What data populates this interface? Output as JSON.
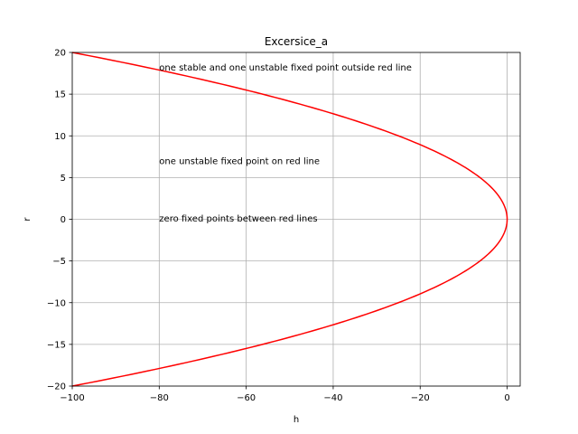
{
  "chart_data": {
    "type": "line",
    "title": "Excersice_a",
    "xlabel": "h",
    "ylabel": "r",
    "xlim": [
      -100,
      3
    ],
    "ylim": [
      -20,
      20
    ],
    "grid": true,
    "xticks": [
      -100,
      -80,
      -60,
      -40,
      -20,
      0
    ],
    "yticks": [
      -20,
      -15,
      -10,
      -5,
      0,
      5,
      10,
      15,
      20
    ],
    "xtick_labels": [
      "−100",
      "−80",
      "−60",
      "−40",
      "−20",
      "0"
    ],
    "ytick_labels": [
      "−20",
      "−15",
      "−10",
      "−5",
      "0",
      "5",
      "10",
      "15",
      "20"
    ],
    "series": [
      {
        "color": "#ff0000",
        "curve": "h = -r^2/4",
        "x": [
          -100,
          -81,
          -64,
          -49,
          -36,
          -25,
          -16,
          -9,
          -4,
          -1,
          0,
          -1,
          -4,
          -9,
          -16,
          -25,
          -36,
          -49,
          -64,
          -81,
          -100
        ],
        "y": [
          -20,
          -18,
          -16,
          -14,
          -12,
          -10,
          -8,
          -6,
          -4,
          -2,
          0,
          2,
          4,
          6,
          8,
          10,
          12,
          14,
          16,
          18,
          20
        ]
      }
    ],
    "annotations": [
      {
        "text": "one stable and one unstable fixed point outside red line",
        "x": -80,
        "y": 18.2
      },
      {
        "text": "one unstable fixed point on red line",
        "x": -80,
        "y": 7.0
      },
      {
        "text": "zero fixed points between red lines",
        "x": -80,
        "y": 0.1
      }
    ]
  }
}
